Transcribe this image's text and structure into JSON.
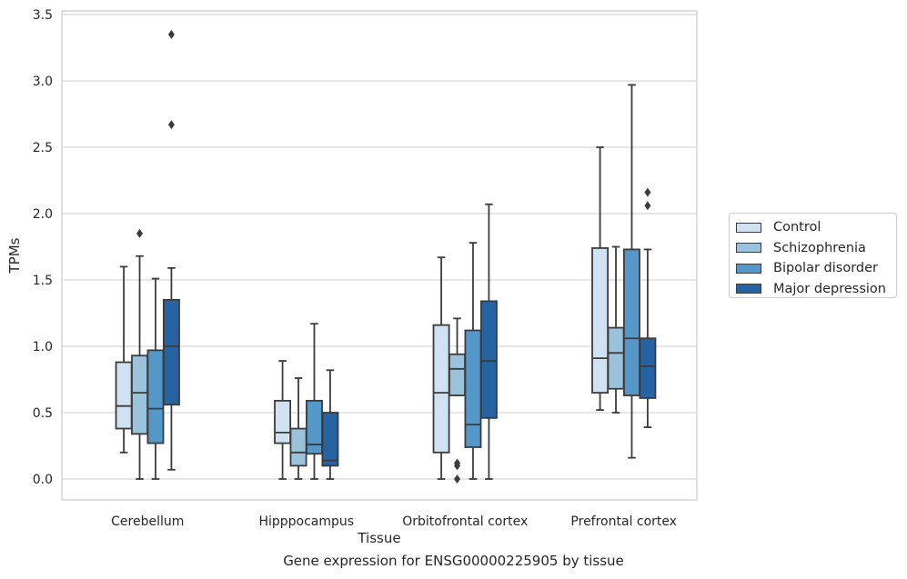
{
  "chart_data": {
    "type": "box",
    "caption": "Gene expression for ENSG00000225905 by tissue",
    "xlabel": "Tissue",
    "ylabel": "TPMs",
    "ylim": [
      -0.16,
      3.53
    ],
    "yticks": [
      "0.0",
      "0.5",
      "1.0",
      "1.5",
      "2.0",
      "2.5",
      "3.0",
      "3.5"
    ],
    "ytick_values": [
      0,
      0.5,
      1.0,
      1.5,
      2.0,
      2.5,
      3.0,
      3.5
    ],
    "grid": "horizontal",
    "legend_position": "right",
    "categories": [
      "Cerebellum",
      "Hipppocampus",
      "Orbitofrontal cortex",
      "Prefrontal cortex"
    ],
    "series": [
      {
        "name": "Control",
        "color": "#d0e1f2",
        "boxes": [
          {
            "whislo": 0.2,
            "q1": 0.38,
            "med": 0.55,
            "q3": 0.88,
            "whishi": 1.6,
            "fliers": []
          },
          {
            "whislo": 0.0,
            "q1": 0.27,
            "med": 0.35,
            "q3": 0.59,
            "whishi": 0.89,
            "fliers": []
          },
          {
            "whislo": 0.0,
            "q1": 0.2,
            "med": 0.65,
            "q3": 1.16,
            "whishi": 1.67,
            "fliers": []
          },
          {
            "whislo": 0.52,
            "q1": 0.65,
            "med": 0.91,
            "q3": 1.74,
            "whishi": 2.5,
            "fliers": []
          }
        ]
      },
      {
        "name": "Schizophrenia",
        "color": "#9ac3db",
        "boxes": [
          {
            "whislo": 0.0,
            "q1": 0.34,
            "med": 0.65,
            "q3": 0.93,
            "whishi": 1.68,
            "fliers": [
              1.85
            ]
          },
          {
            "whislo": 0.0,
            "q1": 0.1,
            "med": 0.2,
            "q3": 0.38,
            "whishi": 0.76,
            "fliers": []
          },
          {
            "whislo": 0.63,
            "q1": 0.63,
            "med": 0.83,
            "q3": 0.94,
            "whishi": 1.21,
            "fliers": [
              0.12,
              0.1,
              0.0
            ]
          },
          {
            "whislo": 0.5,
            "q1": 0.68,
            "med": 0.95,
            "q3": 1.14,
            "whishi": 1.75,
            "fliers": []
          }
        ]
      },
      {
        "name": "Bipolar disorder",
        "color": "#5597c8",
        "boxes": [
          {
            "whislo": 0.0,
            "q1": 0.27,
            "med": 0.53,
            "q3": 0.97,
            "whishi": 1.51,
            "fliers": []
          },
          {
            "whislo": 0.0,
            "q1": 0.19,
            "med": 0.26,
            "q3": 0.59,
            "whishi": 1.17,
            "fliers": []
          },
          {
            "whislo": 0.0,
            "q1": 0.24,
            "med": 0.41,
            "q3": 1.12,
            "whishi": 1.78,
            "fliers": []
          },
          {
            "whislo": 0.16,
            "q1": 0.63,
            "med": 1.06,
            "q3": 1.73,
            "whishi": 2.97,
            "fliers": []
          }
        ]
      },
      {
        "name": "Major depression",
        "color": "#2563a3",
        "boxes": [
          {
            "whislo": 0.07,
            "q1": 0.56,
            "med": 1.0,
            "q3": 1.35,
            "whishi": 1.59,
            "fliers": [
              2.67,
              3.35
            ]
          },
          {
            "whislo": 0.0,
            "q1": 0.1,
            "med": 0.14,
            "q3": 0.5,
            "whishi": 0.82,
            "fliers": []
          },
          {
            "whislo": 0.0,
            "q1": 0.46,
            "med": 0.89,
            "q3": 1.34,
            "whishi": 2.07,
            "fliers": []
          },
          {
            "whislo": 0.39,
            "q1": 0.61,
            "med": 0.85,
            "q3": 1.06,
            "whishi": 1.73,
            "fliers": [
              2.06,
              2.16
            ]
          }
        ]
      }
    ]
  }
}
